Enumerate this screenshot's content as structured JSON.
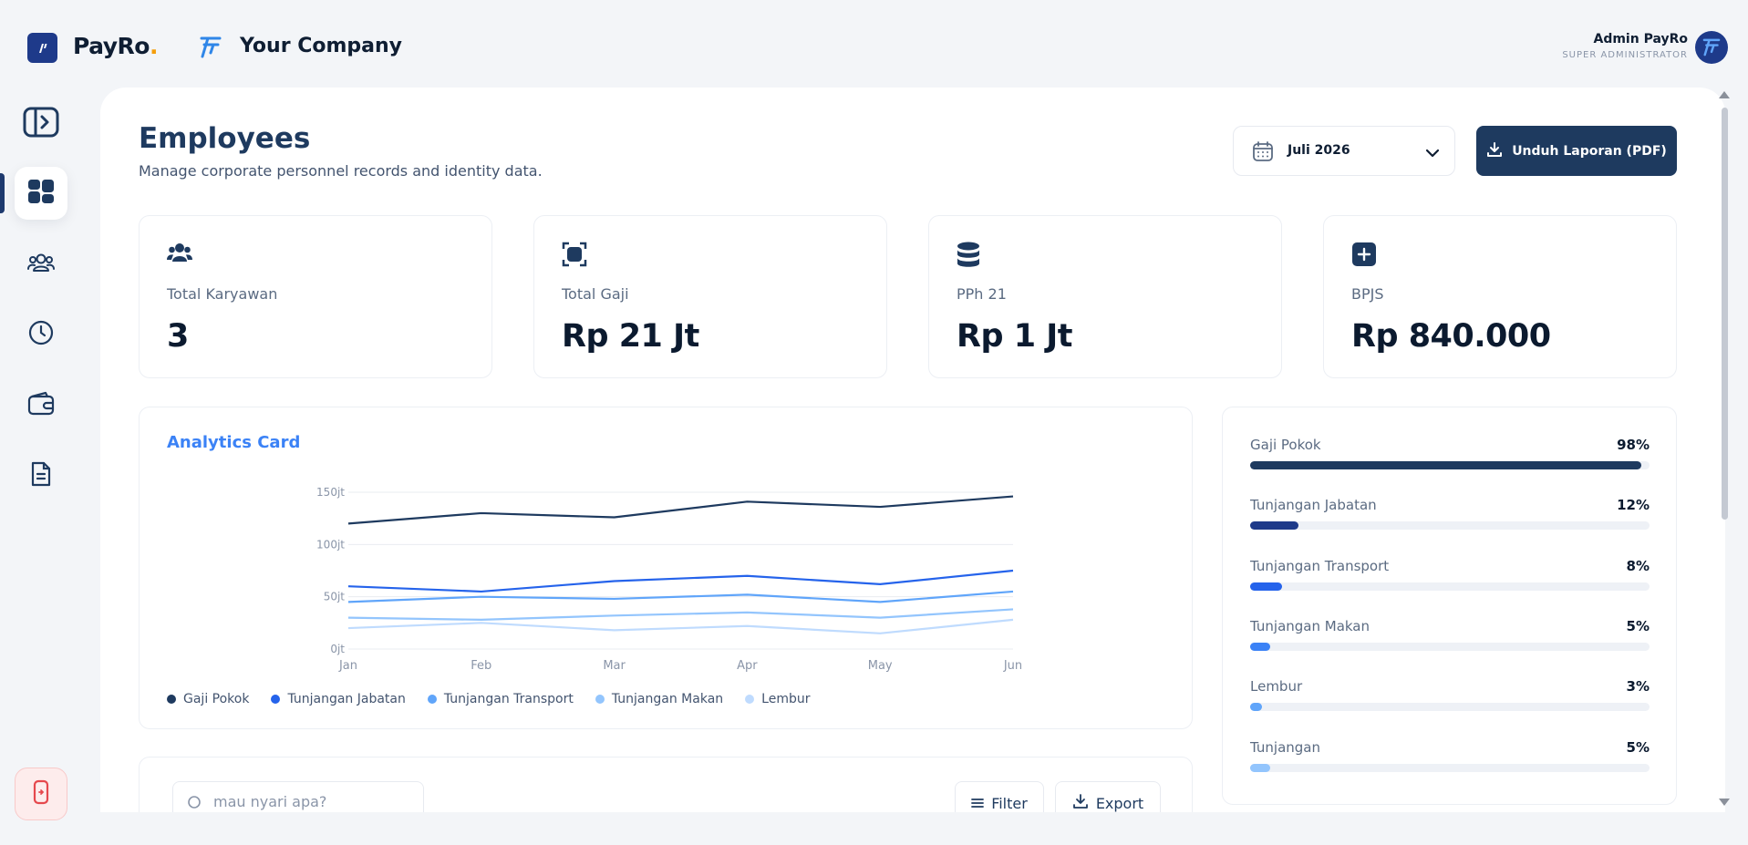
{
  "brand": {
    "name": "PayRo",
    "dot": ".",
    "company": "Your Company"
  },
  "user": {
    "name": "Admin PayRo",
    "role": "SUPER ADMINISTRATOR"
  },
  "sidebar": {
    "items": [
      {
        "icon": "sidebar-toggle-icon"
      },
      {
        "icon": "dashboard-icon",
        "active": true
      },
      {
        "icon": "users-icon"
      },
      {
        "icon": "clock-icon"
      },
      {
        "icon": "wallet-icon"
      },
      {
        "icon": "document-icon"
      }
    ],
    "logout_icon": "logout-icon"
  },
  "page": {
    "title": "Employees",
    "subtitle": "Manage corporate personnel records and identity data.",
    "period": "Juli 2026",
    "download_label": "Unduh Laporan (PDF)"
  },
  "stats": [
    {
      "label": "Total Karyawan",
      "value": "3",
      "icon": "team-icon"
    },
    {
      "label": "Total Gaji",
      "value": "Rp 21 Jt",
      "icon": "stop-square-icon"
    },
    {
      "label": "PPh 21",
      "value": "Rp 1 Jt",
      "icon": "database-icon"
    },
    {
      "label": "BPJS",
      "value": "Rp 840.000",
      "icon": "plus-square-icon"
    }
  ],
  "chart_title": "Analytics Card",
  "chart_data": {
    "type": "line",
    "categories": [
      "Jan",
      "Feb",
      "Mar",
      "Apr",
      "May",
      "Jun"
    ],
    "ytick_labels": [
      "0jt",
      "50jt",
      "100jt",
      "150jt"
    ],
    "ylim": [
      0,
      150
    ],
    "grid": true,
    "legend_position": "bottom-left",
    "series": [
      {
        "name": "Gaji Pokok",
        "color": "#1e3a5f",
        "values": [
          120,
          130,
          126,
          141,
          136,
          146
        ]
      },
      {
        "name": "Tunjangan Jabatan",
        "color": "#2563eb",
        "values": [
          60,
          55,
          65,
          70,
          62,
          75
        ]
      },
      {
        "name": "Tunjangan Transport",
        "color": "#60a5fa",
        "values": [
          45,
          50,
          48,
          52,
          45,
          55
        ]
      },
      {
        "name": "Tunjangan Makan",
        "color": "#93c5fd",
        "values": [
          30,
          28,
          32,
          35,
          30,
          38
        ]
      },
      {
        "name": "Lembur",
        "color": "#bfdbfe",
        "values": [
          20,
          25,
          18,
          22,
          15,
          28
        ]
      }
    ]
  },
  "breakdown": [
    {
      "name": "Gaji Pokok",
      "pct_label": "98%",
      "value": 0.98,
      "color": "#1e3a5f"
    },
    {
      "name": "Tunjangan Jabatan",
      "pct_label": "12%",
      "value": 0.12,
      "color": "#1e3a8a"
    },
    {
      "name": "Tunjangan Transport",
      "pct_label": "8%",
      "value": 0.08,
      "color": "#2563eb"
    },
    {
      "name": "Tunjangan Makan",
      "pct_label": "5%",
      "value": 0.05,
      "color": "#3b82f6"
    },
    {
      "name": "Lembur",
      "pct_label": "3%",
      "value": 0.03,
      "color": "#60a5fa"
    },
    {
      "name": "Tunjangan",
      "pct_label": "5%",
      "value": 0.05,
      "color": "#93c5fd"
    }
  ],
  "table": {
    "search_placeholder": "mau nyari apa?",
    "filter_label": "Filter",
    "export_label": "Export"
  }
}
